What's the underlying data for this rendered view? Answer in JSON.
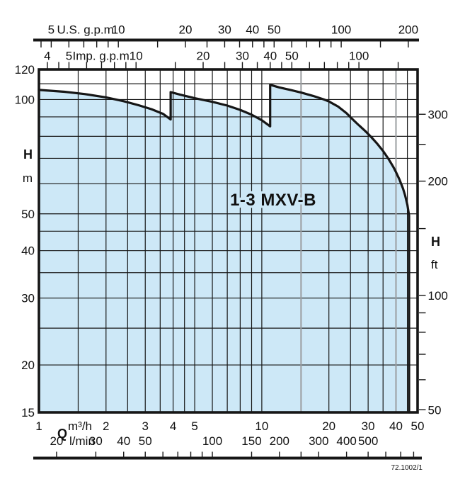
{
  "chart_data": {
    "type": "area",
    "title": "1-3 MXV-B",
    "reference": "72.1002/1",
    "x_domain_m3h": [
      1,
      50
    ],
    "y_domain_m": [
      15,
      120
    ],
    "grid": {
      "x_gridlines_m3h": [
        1,
        1.5,
        2,
        2.5,
        3,
        3.5,
        4,
        4.5,
        5,
        6,
        7,
        8,
        9,
        10,
        15,
        20,
        25,
        30,
        35,
        40,
        45,
        50
      ],
      "x_gray_gridlines_m3h": [
        15,
        40
      ],
      "y_gridlines_m": [
        120,
        110,
        100,
        90,
        80,
        70,
        60,
        50,
        45,
        40,
        35,
        30,
        25,
        20,
        15
      ]
    },
    "axes": {
      "us_gpm": {
        "label": "U.S. g.p.m.",
        "labeled_ticks": [
          5,
          10,
          20,
          30,
          40,
          50,
          100,
          200
        ],
        "minor_ticks": [
          4.5,
          6,
          7,
          8,
          9,
          15,
          25,
          35,
          45,
          60,
          70,
          80,
          90,
          150
        ],
        "gpm_per_m3h": 4.40287
      },
      "imp_gpm": {
        "label": "Imp. g.p.m.",
        "labeled_ticks": [
          4,
          5,
          10,
          20,
          30,
          40,
          50,
          100
        ],
        "minor_ticks": [
          4.5,
          6,
          7,
          8,
          9,
          15,
          25,
          35,
          45,
          60,
          70,
          80,
          90,
          150
        ],
        "gpm_per_m3h": 3.66615
      },
      "h_m": {
        "label": "H",
        "unit": "m",
        "labeled_ticks": [
          120,
          100,
          50,
          40,
          30,
          20,
          15
        ]
      },
      "h_ft": {
        "label": "H",
        "unit": "ft",
        "labeled_ticks": [
          300,
          200,
          100,
          50
        ],
        "minor_ticks": [
          250,
          150,
          90,
          80,
          70,
          60
        ],
        "ft_per_m": 3.28084
      },
      "q_m3h": {
        "label": "Q",
        "unit": "m³/h",
        "labeled_ticks": [
          1,
          2,
          3,
          4,
          5,
          10,
          20,
          30,
          40,
          50
        ]
      },
      "q_lmin": {
        "unit": "l/min",
        "labeled_ticks": [
          20,
          30,
          40,
          50,
          100,
          150,
          200,
          300,
          400,
          500
        ],
        "minor_ticks": [
          60,
          70,
          80,
          90,
          250,
          600,
          700,
          800
        ],
        "lmin_per_m3h": 16.6667
      }
    },
    "envelope_q_h": [
      [
        1,
        106
      ],
      [
        1.3,
        104.8
      ],
      [
        1.6,
        103.4
      ],
      [
        2,
        101.3
      ],
      [
        2.4,
        99
      ],
      [
        2.8,
        96.6
      ],
      [
        3.2,
        94.3
      ],
      [
        3.6,
        91.7
      ],
      [
        3.9,
        88.6
      ],
      [
        3.9,
        104.6
      ],
      [
        4.3,
        103
      ],
      [
        5,
        100.8
      ],
      [
        6,
        98.6
      ],
      [
        7,
        96.4
      ],
      [
        8,
        93.9
      ],
      [
        9,
        91.2
      ],
      [
        10,
        88.2
      ],
      [
        10.9,
        85
      ],
      [
        10.9,
        109.3
      ],
      [
        12,
        107.6
      ],
      [
        13.5,
        105.9
      ],
      [
        15,
        104.3
      ],
      [
        17,
        102.2
      ],
      [
        19,
        100
      ],
      [
        20,
        98.8
      ],
      [
        22,
        95.8
      ],
      [
        24,
        92
      ],
      [
        25,
        89.8
      ],
      [
        27,
        86
      ],
      [
        29,
        82.8
      ],
      [
        31,
        79.6
      ],
      [
        33,
        76.4
      ],
      [
        35,
        73.2
      ],
      [
        37,
        69.8
      ],
      [
        39,
        66.3
      ],
      [
        40,
        64.4
      ],
      [
        41.5,
        61.5
      ],
      [
        43,
        58.3
      ],
      [
        44,
        55.8
      ],
      [
        45,
        52.8
      ],
      [
        45.8,
        49.5
      ],
      [
        45.8,
        15
      ]
    ],
    "colors": {
      "fill": "#cde8f7",
      "line": "#161616",
      "gray_grid": "#9a9da0",
      "text": "#111111"
    }
  }
}
